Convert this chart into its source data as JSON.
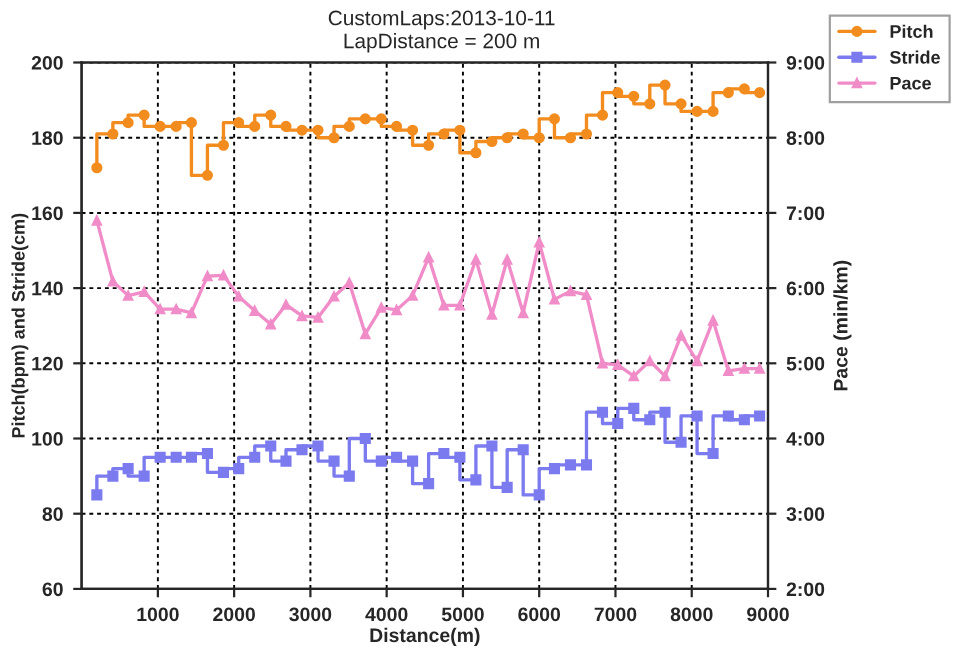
{
  "chart_data": {
    "type": "step",
    "title": "CustomLaps:2013-10-11",
    "subtitle": "LapDistance = 200 m",
    "xlabel": "Distance(m)",
    "ylabel": "Pitch(bpm) and Stride(cm)",
    "y2label": "Pace (min/km)",
    "x": [
      200,
      410,
      610,
      820,
      1030,
      1240,
      1440,
      1650,
      1860,
      2060,
      2270,
      2480,
      2680,
      2890,
      3100,
      3310,
      3510,
      3720,
      3930,
      4130,
      4340,
      4550,
      4750,
      4960,
      5170,
      5380,
      5580,
      5790,
      6000,
      6200,
      6410,
      6620,
      6830,
      7030,
      7240,
      7450,
      7650,
      7860,
      8070,
      8280,
      8480,
      8690,
      8890
    ],
    "series": [
      {
        "name": "Pitch",
        "color": "#f28c1e",
        "marker": "circle",
        "values": [
          172,
          181,
          184,
          186,
          183,
          183,
          184,
          170,
          178,
          184,
          183,
          186,
          183,
          182,
          182,
          180,
          183,
          185,
          185,
          183,
          182,
          178,
          181,
          182,
          176,
          179,
          180,
          181,
          180,
          185,
          180,
          181,
          186,
          192,
          191,
          189,
          194,
          189,
          187,
          187,
          192,
          193,
          192
        ]
      },
      {
        "name": "Stride",
        "color": "#7b7bef",
        "marker": "square",
        "values": [
          85,
          90,
          92,
          90,
          95,
          95,
          95,
          96,
          91,
          92,
          95,
          98,
          94,
          97,
          98,
          94,
          90,
          100,
          94,
          95,
          94,
          88,
          96,
          95,
          89,
          98,
          87,
          97,
          85,
          92,
          93,
          93,
          107,
          104,
          108,
          105,
          107,
          99,
          106,
          96,
          106,
          105,
          106
        ]
      },
      {
        "name": "Pace",
        "type": "line",
        "axis": "y2",
        "color": "#f08cc8",
        "marker": "triangle",
        "values": [
          6.9,
          6.09,
          5.9,
          5.95,
          5.72,
          5.72,
          5.67,
          6.16,
          6.17,
          5.89,
          5.7,
          5.52,
          5.78,
          5.63,
          5.61,
          5.89,
          6.07,
          5.39,
          5.74,
          5.71,
          5.9,
          6.41,
          5.77,
          5.77,
          6.38,
          5.65,
          6.38,
          5.67,
          6.61,
          5.85,
          5.96,
          5.91,
          5.0,
          4.98,
          4.83,
          5.03,
          4.83,
          5.37,
          5.03,
          5.57,
          4.9,
          4.93,
          4.93
        ]
      }
    ],
    "xlim": [
      0,
      9000
    ],
    "xticks": [
      1000,
      2000,
      3000,
      4000,
      5000,
      6000,
      7000,
      8000,
      9000
    ],
    "ylim": [
      60,
      200
    ],
    "yticks": [
      60,
      80,
      100,
      120,
      140,
      160,
      180,
      200
    ],
    "y2lim": [
      2,
      9
    ],
    "y2ticks": [
      {
        "value": 2,
        "label": "2:00"
      },
      {
        "value": 3,
        "label": "3:00"
      },
      {
        "value": 4,
        "label": "4:00"
      },
      {
        "value": 5,
        "label": "5:00"
      },
      {
        "value": 6,
        "label": "6:00"
      },
      {
        "value": 7,
        "label": "7:00"
      },
      {
        "value": 8,
        "label": "8:00"
      },
      {
        "value": 9,
        "label": "9:00"
      }
    ],
    "grid": true,
    "legend": "top right",
    "line_style": "solid"
  }
}
